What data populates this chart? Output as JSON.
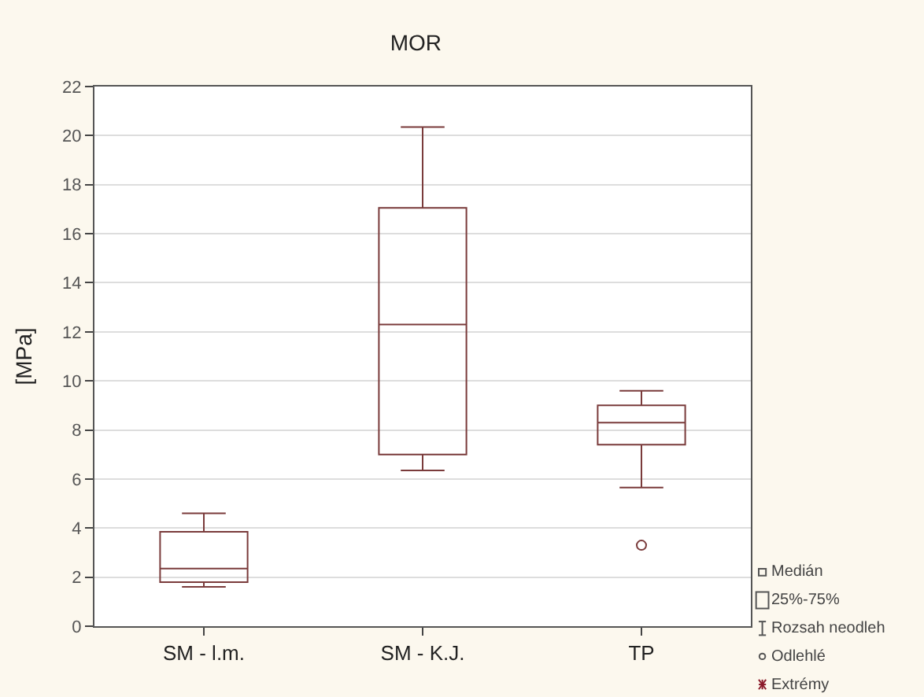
{
  "chart_data": {
    "type": "box",
    "title": "MOR",
    "ylabel": "[MPa]",
    "categories": [
      "SM - l.m.",
      "SM - K.J.",
      "TP"
    ],
    "boxes": [
      {
        "low": 1.6,
        "q1": 1.8,
        "median": 2.35,
        "q3": 3.85,
        "high": 4.6
      },
      {
        "low": 6.35,
        "q1": 7.0,
        "median": 12.3,
        "q3": 17.05,
        "high": 20.35
      },
      {
        "low": 5.65,
        "q1": 7.4,
        "median": 8.3,
        "q3": 9.0,
        "high": 9.6,
        "outliers": [
          3.3
        ]
      }
    ],
    "color": "#7a3b3b",
    "ylim": [
      0,
      22
    ],
    "yticks": [
      0,
      2,
      4,
      6,
      8,
      10,
      12,
      14,
      16,
      18,
      20,
      22
    ],
    "grid": "y",
    "annotations": [
      "Medián",
      "25%-75%",
      "Rozsah neodleh",
      "Odlehlé",
      "Extrémy"
    ]
  }
}
